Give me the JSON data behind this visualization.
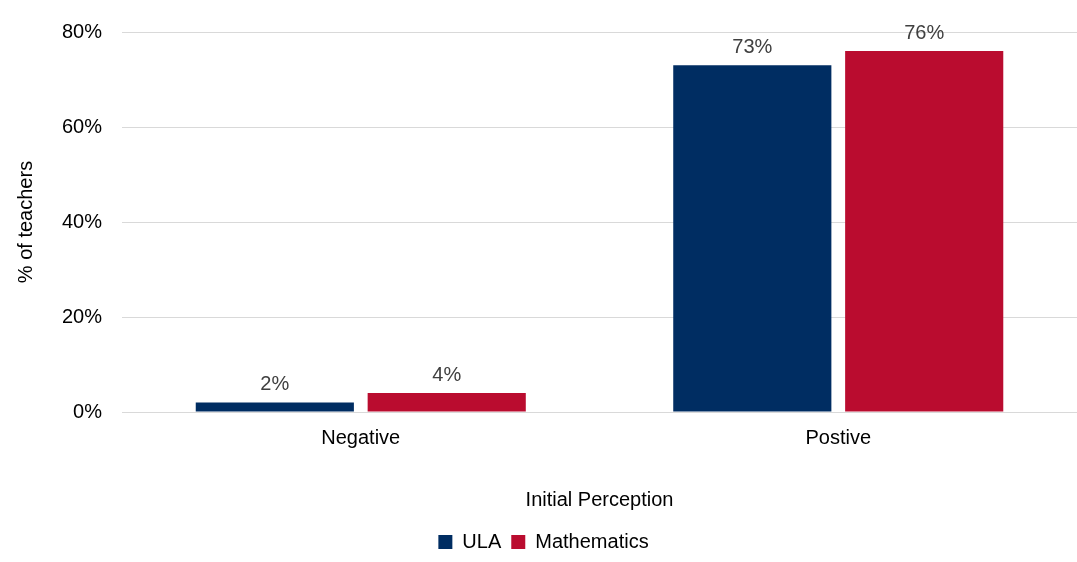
{
  "chart_data": {
    "type": "bar",
    "xlabel": "Initial Perception",
    "ylabel": "% of teachers",
    "categories": [
      "Negative",
      "Postive"
    ],
    "series": [
      {
        "name": "ULA",
        "color": "#002d62",
        "values": [
          2,
          73
        ],
        "value_labels": [
          "2%",
          "73%"
        ]
      },
      {
        "name": "Mathematics",
        "color": "#ba0c2f",
        "values": [
          4,
          76
        ],
        "value_labels": [
          "4%",
          "76%"
        ]
      }
    ],
    "ylim": [
      0,
      80
    ],
    "yticks": [
      {
        "value": 0,
        "label": "0%"
      },
      {
        "value": 20,
        "label": "20%"
      },
      {
        "value": 40,
        "label": "40%"
      },
      {
        "value": 60,
        "label": "60%"
      },
      {
        "value": 80,
        "label": "80%"
      }
    ],
    "grid": "y",
    "legend": "bottom"
  }
}
